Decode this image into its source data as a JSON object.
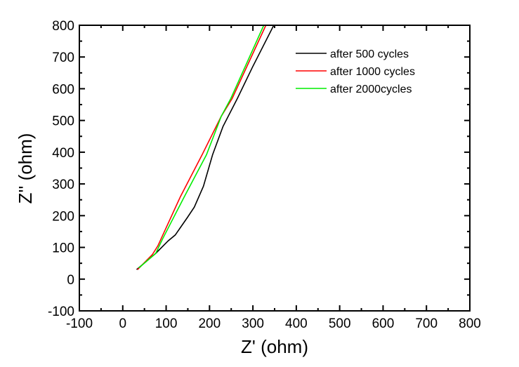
{
  "chart_data": {
    "type": "line",
    "title": "",
    "xlabel": "Z' (ohm)",
    "ylabel": "Z'' (ohm)",
    "xlim": [
      -100,
      800
    ],
    "ylim": [
      -100,
      800
    ],
    "x_ticks": [
      "-100",
      "0",
      "100",
      "200",
      "300",
      "400",
      "500",
      "600",
      "700",
      "800"
    ],
    "y_ticks": [
      "-100",
      "0",
      "100",
      "200",
      "300",
      "400",
      "500",
      "600",
      "700",
      "800"
    ],
    "grid": false,
    "legend_position": "top-right",
    "series": [
      {
        "name": "after 500 cycles",
        "color": "#000000",
        "points": [
          [
            32,
            30
          ],
          [
            76,
            81
          ],
          [
            105,
            121
          ],
          [
            121,
            139
          ],
          [
            149,
            194
          ],
          [
            165,
            227
          ],
          [
            186,
            293
          ],
          [
            207,
            392
          ],
          [
            231,
            481
          ],
          [
            264,
            569
          ],
          [
            299,
            668
          ],
          [
            348,
            800
          ]
        ]
      },
      {
        "name": "after 1000 cycles",
        "color": "#ff0000",
        "points": [
          [
            34,
            30
          ],
          [
            68,
            77
          ],
          [
            81,
            105
          ],
          [
            133,
            260
          ],
          [
            183,
            392
          ],
          [
            227,
            513
          ],
          [
            252,
            569
          ],
          [
            330,
            800
          ]
        ]
      },
      {
        "name": "after 2000cycles",
        "color": "#00ee00",
        "points": [
          [
            37,
            35
          ],
          [
            76,
            81
          ],
          [
            92,
            127
          ],
          [
            142,
            260
          ],
          [
            193,
            392
          ],
          [
            227,
            513
          ],
          [
            249,
            569
          ],
          [
            325,
            800
          ]
        ]
      }
    ]
  }
}
